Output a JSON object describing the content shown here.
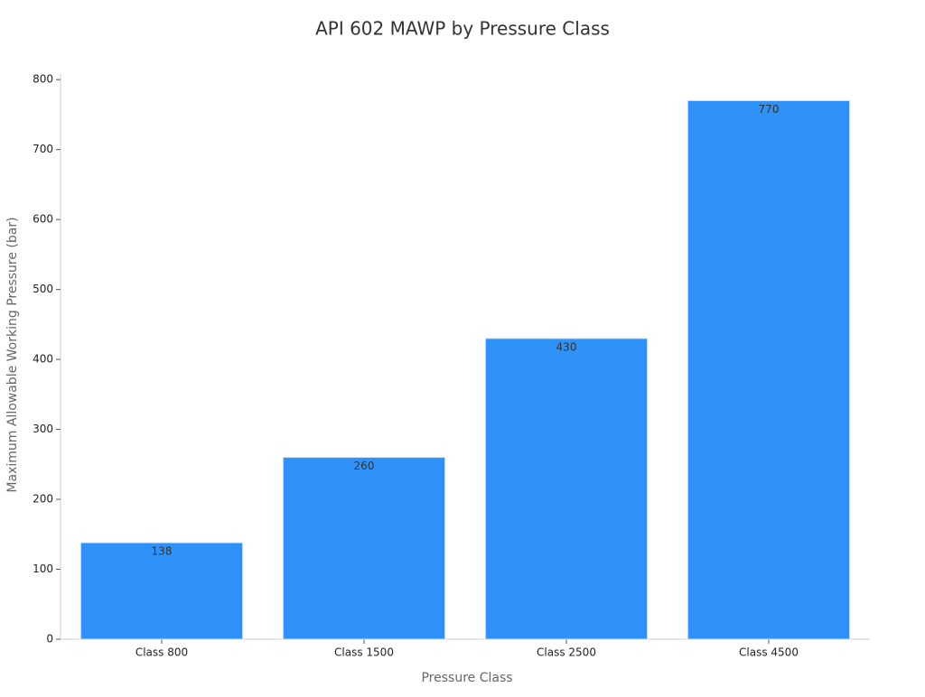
{
  "chart_data": {
    "type": "bar",
    "title": "API 602 MAWP by Pressure Class",
    "x_label": "Pressure Class",
    "y_label": "Maximum Allowable Working Pressure (bar)",
    "categories": [
      "Class 800",
      "Class 1500",
      "Class 2500",
      "Class 4500"
    ],
    "values": [
      138,
      260,
      430,
      770
    ],
    "color": "#2f92f8",
    "ylim": [
      0,
      808
    ],
    "yticks": [
      0,
      100,
      200,
      300,
      400,
      500,
      600,
      700,
      800
    ],
    "grid": false
  }
}
